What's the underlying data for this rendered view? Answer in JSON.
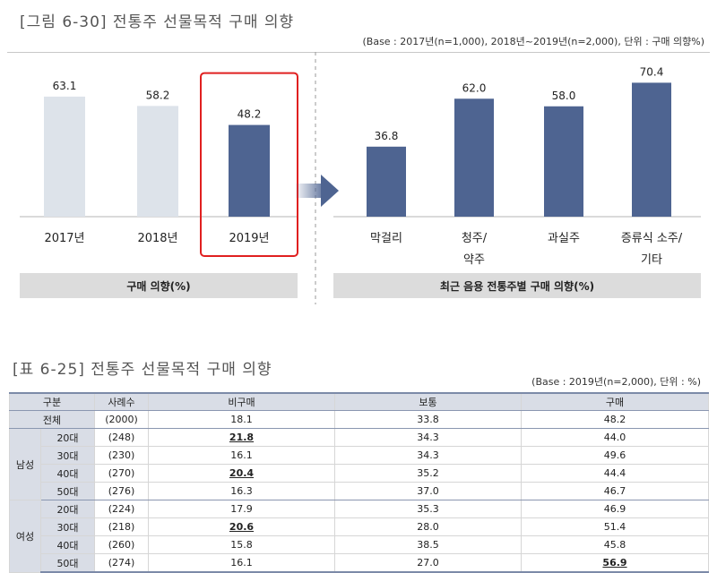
{
  "figure": {
    "title": "[그림 6-30] 전통주 선물목적 구매 의향",
    "base_note": "(Base : 2017년(n=1,000), 2018년~2019년(n=2,000), 단위 : 구매 의향%)"
  },
  "chart_data": [
    {
      "type": "bar",
      "title": "구매 의향(%)",
      "categories": [
        "2017년",
        "2018년",
        "2019년"
      ],
      "values": [
        63.1,
        58.2,
        48.2
      ],
      "ylim": [
        0,
        80
      ],
      "highlight": "2019년",
      "colors": {
        "past": "#dde3ea",
        "current": "#4e6491",
        "highlight_box": "#e02020"
      }
    },
    {
      "type": "bar",
      "title": "최근 음용 전통주별 구매 의향(%)",
      "categories": [
        "막걸리",
        "청주/\n약주",
        "과실주",
        "증류식 소주/\n기타"
      ],
      "values": [
        36.8,
        62.0,
        58.0,
        70.4
      ],
      "ylim": [
        0,
        80
      ],
      "colors": {
        "bar": "#4e6491"
      }
    }
  ],
  "table": {
    "title": "[표 6-25] 전통주 선물목적 구매 의향",
    "base_note": "(Base : 2019년(n=2,000), 단위 : %)",
    "headers": {
      "group": "구분",
      "n": "사례수",
      "no": "비구매",
      "neutral": "보통",
      "buy": "구매"
    },
    "total": {
      "label": "전체",
      "n": "(2000)",
      "no": "18.1",
      "neutral": "33.8",
      "buy": "48.2"
    },
    "male": {
      "label": "남성",
      "rows": [
        {
          "age": "20대",
          "n": "(248)",
          "no": "21.8",
          "neutral": "34.3",
          "buy": "44.0"
        },
        {
          "age": "30대",
          "n": "(230)",
          "no": "16.1",
          "neutral": "34.3",
          "buy": "49.6"
        },
        {
          "age": "40대",
          "n": "(270)",
          "no": "20.4",
          "neutral": "35.2",
          "buy": "44.4"
        },
        {
          "age": "50대",
          "n": "(276)",
          "no": "16.3",
          "neutral": "37.0",
          "buy": "46.7"
        }
      ]
    },
    "female": {
      "label": "여성",
      "rows": [
        {
          "age": "20대",
          "n": "(224)",
          "no": "17.9",
          "neutral": "35.3",
          "buy": "46.9"
        },
        {
          "age": "30대",
          "n": "(218)",
          "no": "20.6",
          "neutral": "28.0",
          "buy": "51.4"
        },
        {
          "age": "40대",
          "n": "(260)",
          "no": "15.8",
          "neutral": "38.5",
          "buy": "45.8"
        },
        {
          "age": "50대",
          "n": "(274)",
          "no": "16.1",
          "neutral": "27.0",
          "buy": "56.9"
        }
      ]
    }
  }
}
